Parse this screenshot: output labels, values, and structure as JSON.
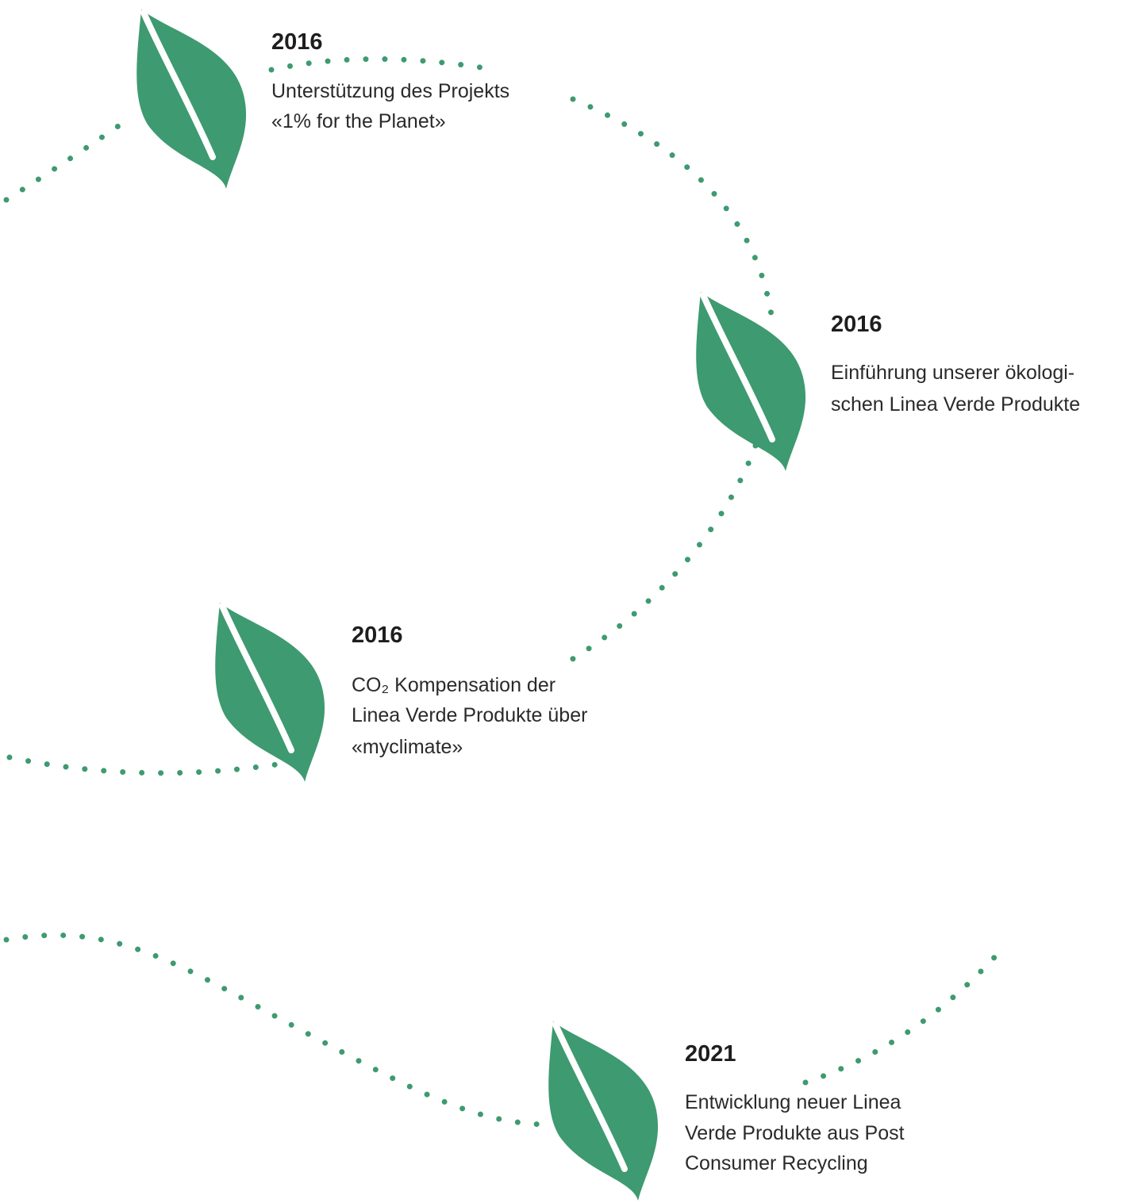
{
  "milestones": [
    {
      "year": "2016",
      "lines": [
        "Unterstützung des Projekts",
        "«1% for the Planet»"
      ]
    },
    {
      "year": "2016",
      "lines": [
        "Einführung unserer ökologi-",
        "schen Linea Verde Produkte"
      ]
    },
    {
      "year": "2016",
      "lines": [
        "CO₂ Kompensation der",
        "Linea Verde Produkte über",
        "«myclimate»"
      ]
    },
    {
      "year": "2021",
      "lines": [
        "Entwicklung neuer Linea",
        "Verde Produkte aus Post",
        "Consumer Recycling"
      ]
    }
  ]
}
